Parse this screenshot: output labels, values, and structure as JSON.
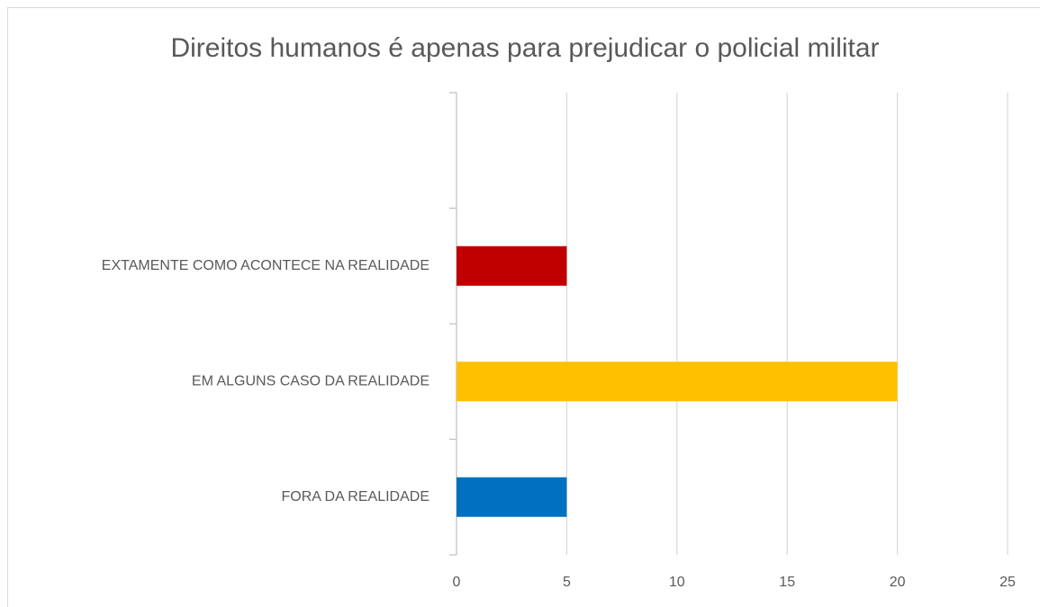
{
  "chart_data": {
    "type": "bar",
    "orientation": "horizontal",
    "title": "Direitos humanos é apenas para prejudicar o policial militar",
    "categories": [
      "FORA DA REALIDADE",
      "EM ALGUNS CASO DA REALIDADE",
      "EXTAMENTE COMO ACONTECE NA REALIDADE",
      null
    ],
    "values": [
      5,
      20,
      5,
      null
    ],
    "colors": [
      "#0070c0",
      "#ffc000",
      "#c00000",
      null
    ],
    "xlim": [
      0,
      25
    ],
    "xticks": [
      0,
      5,
      10,
      15,
      20,
      25
    ],
    "grid": true
  }
}
